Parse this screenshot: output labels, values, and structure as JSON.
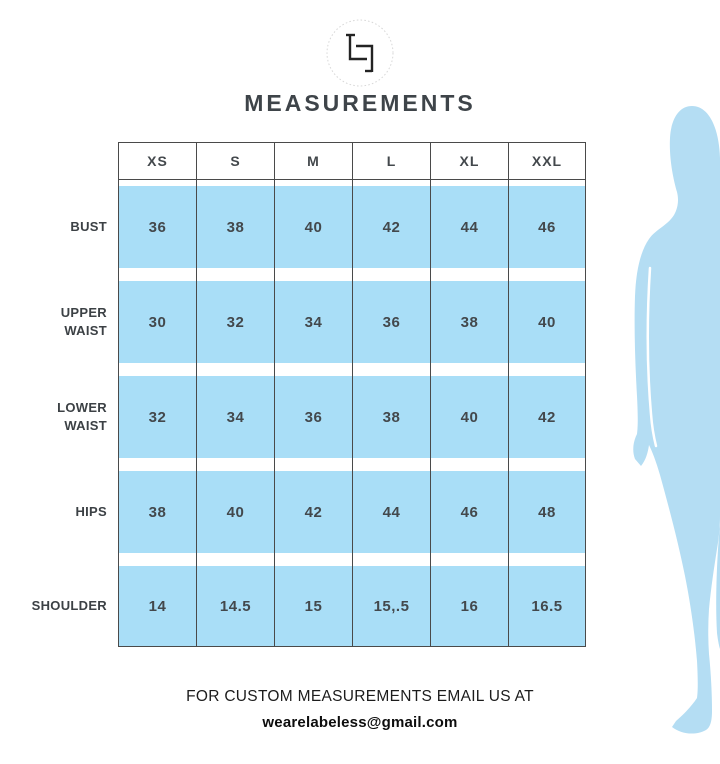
{
  "title": "MEASUREMENTS",
  "icons": {
    "logo": "labeless-monogram-logo"
  },
  "table": {
    "columns": [
      "XS",
      "S",
      "M",
      "L",
      "XL",
      "XXL"
    ],
    "rows": [
      {
        "label": "BUST",
        "values": [
          "36",
          "38",
          "40",
          "42",
          "44",
          "46"
        ]
      },
      {
        "label": "UPPER WAIST",
        "values": [
          "30",
          "32",
          "34",
          "36",
          "38",
          "40"
        ]
      },
      {
        "label": "LOWER WAIST",
        "values": [
          "32",
          "34",
          "36",
          "38",
          "40",
          "42"
        ]
      },
      {
        "label": "HIPS",
        "values": [
          "38",
          "40",
          "42",
          "44",
          "46",
          "48"
        ]
      },
      {
        "label": "SHOULDER",
        "values": [
          "14",
          "14.5",
          "15",
          "15,.5",
          "16",
          "16.5"
        ]
      }
    ]
  },
  "footer": {
    "line1": "FOR CUSTOM MEASUREMENTS EMAIL US AT",
    "line2": "wearelabeless@gmail.com"
  },
  "colors": {
    "cell_blue": "#a9def7",
    "silhouette_blue": "#b4ddf3",
    "border": "#4a4a4a",
    "text_dark": "#43484c",
    "title_color": "#3e4449"
  }
}
